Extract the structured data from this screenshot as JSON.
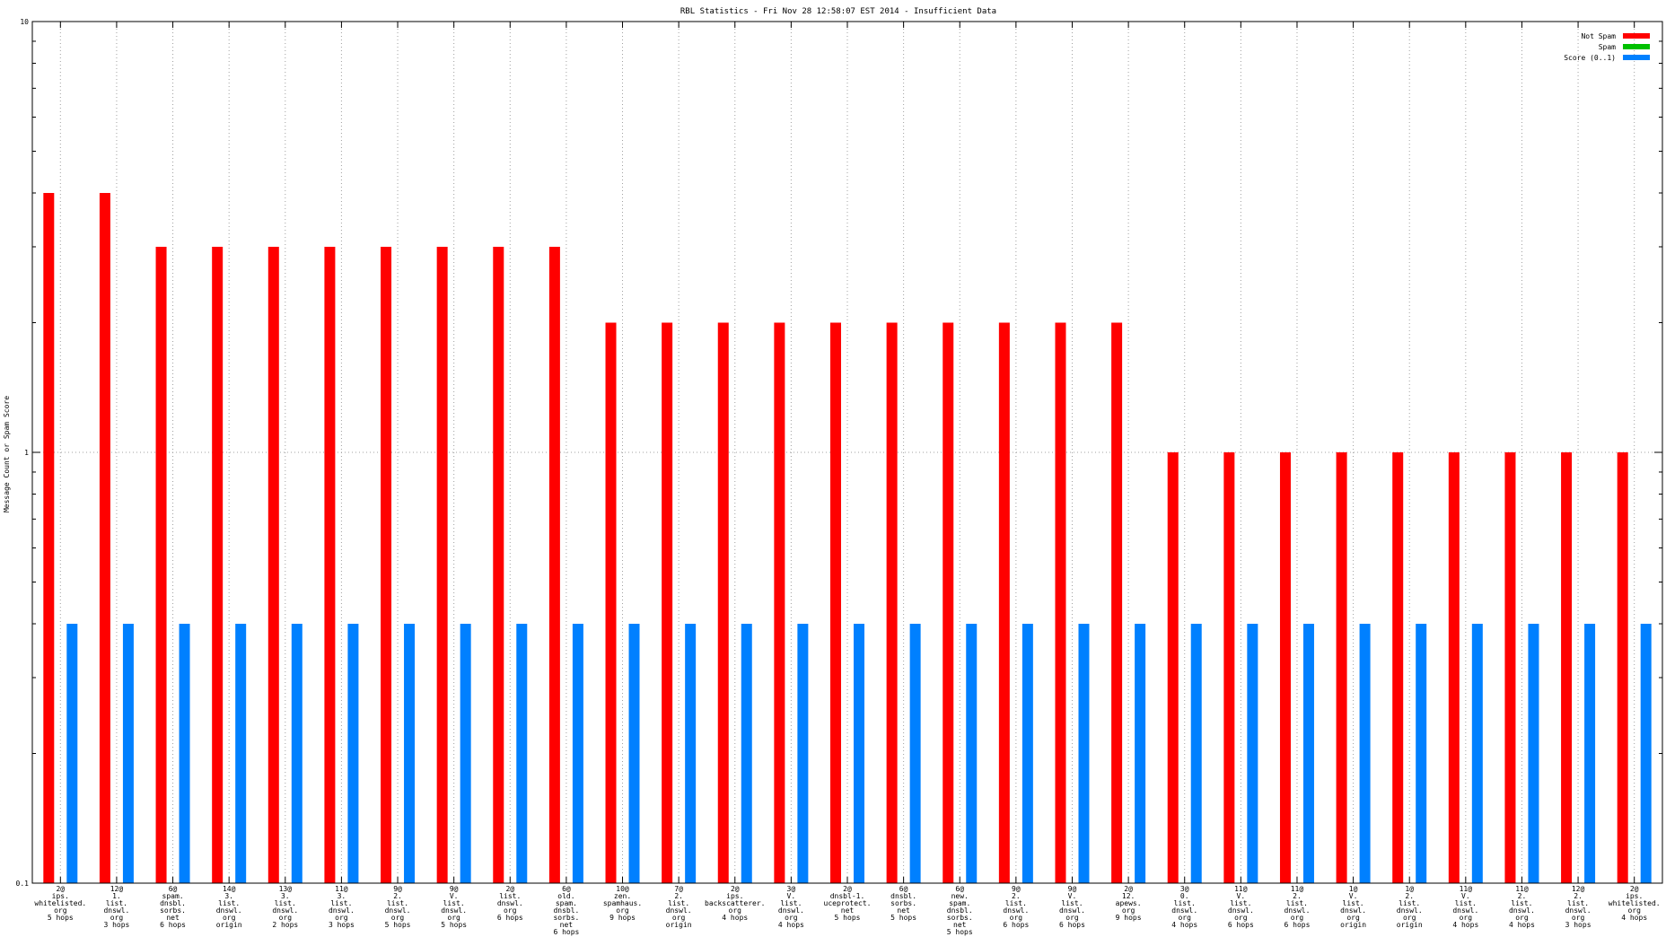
{
  "chart_data": {
    "type": "bar",
    "title": "RBL Statistics - Fri Nov 28 12:58:07 EST 2014 - Insufficient Data",
    "ylabel": "Message Count or Spam Score",
    "xlabel": "",
    "yscale": "log",
    "ylim": [
      0.1,
      10
    ],
    "y_ticks": [
      "0.1",
      "1",
      "10"
    ],
    "grid": true,
    "legend_position": "top-right",
    "categories": [
      [
        "2@",
        "ips.",
        "whitelisted.",
        "org",
        "5 hops"
      ],
      [
        "12@",
        "1.",
        "list.",
        "dnswl.",
        "org",
        "3 hops"
      ],
      [
        "6@",
        "spam.",
        "dnsbl.",
        "sorbs.",
        "net",
        "6 hops"
      ],
      [
        "14@",
        "3.",
        "list.",
        "dnswl.",
        "org",
        "origin"
      ],
      [
        "13@",
        "3.",
        "list.",
        "dnswl.",
        "org",
        "2 hops"
      ],
      [
        "11@",
        "3.",
        "list.",
        "dnswl.",
        "org",
        "3 hops"
      ],
      [
        "9@",
        "2.",
        "list.",
        "dnswl.",
        "org",
        "5 hops"
      ],
      [
        "9@",
        "V.",
        "list.",
        "dnswl.",
        "org",
        "5 hops"
      ],
      [
        "2@",
        "list.",
        "dnswl.",
        "org",
        "6 hops"
      ],
      [
        "6@",
        "old.",
        "spam.",
        "dnsbl.",
        "sorbs.",
        "net",
        "6 hops"
      ],
      [
        "10@",
        "zen.",
        "spamhaus.",
        "org",
        "9 hops"
      ],
      [
        "7@",
        "2.",
        "list.",
        "dnswl.",
        "org",
        "origin"
      ],
      [
        "2@",
        "ips.",
        "backscatterer.",
        "org",
        "4 hops"
      ],
      [
        "3@",
        "V.",
        "list.",
        "dnswl.",
        "org",
        "4 hops"
      ],
      [
        "2@",
        "dnsbl-1.",
        "uceprotect.",
        "net",
        "5 hops"
      ],
      [
        "6@",
        "dnsbl.",
        "sorbs.",
        "net",
        "5 hops"
      ],
      [
        "6@",
        "new.",
        "spam.",
        "dnsbl.",
        "sorbs.",
        "net",
        "5 hops"
      ],
      [
        "9@",
        "2.",
        "list.",
        "dnswl.",
        "org",
        "6 hops"
      ],
      [
        "9@",
        "V.",
        "list.",
        "dnswl.",
        "org",
        "6 hops"
      ],
      [
        "2@",
        "12.",
        "apews.",
        "org",
        "9 hops"
      ],
      [
        "3@",
        "0.",
        "list.",
        "dnswl.",
        "org",
        "4 hops"
      ],
      [
        "11@",
        "V.",
        "list.",
        "dnswl.",
        "org",
        "6 hops"
      ],
      [
        "11@",
        "2.",
        "list.",
        "dnswl.",
        "org",
        "6 hops"
      ],
      [
        "1@",
        "V.",
        "list.",
        "dnswl.",
        "org",
        "origin"
      ],
      [
        "1@",
        "2.",
        "list.",
        "dnswl.",
        "org",
        "origin"
      ],
      [
        "11@",
        "V.",
        "list.",
        "dnswl.",
        "org",
        "4 hops"
      ],
      [
        "11@",
        "2.",
        "list.",
        "dnswl.",
        "org",
        "4 hops"
      ],
      [
        "12@",
        "2.",
        "list.",
        "dnswl.",
        "org",
        "3 hops"
      ],
      [
        "2@",
        "ips.",
        "whitelisted.",
        "org",
        "4 hops"
      ]
    ],
    "series": [
      {
        "name": "Not Spam",
        "color": "#ff0000",
        "values": [
          4,
          4,
          3,
          3,
          3,
          3,
          3,
          3,
          3,
          3,
          2,
          2,
          2,
          2,
          2,
          2,
          2,
          2,
          2,
          2,
          1,
          1,
          1,
          1,
          1,
          1,
          1,
          1,
          1
        ]
      },
      {
        "name": "Spam",
        "color": "#00c000",
        "values": [
          0,
          0,
          0,
          0,
          0,
          0,
          0,
          0,
          0,
          0,
          0,
          0,
          0,
          0,
          0,
          0,
          0,
          0,
          0,
          0,
          0,
          0,
          0,
          0,
          0,
          0,
          0,
          0,
          0
        ]
      },
      {
        "name": "Score (0..1)",
        "color": "#0080ff",
        "values": [
          0.4,
          0.4,
          0.4,
          0.4,
          0.4,
          0.4,
          0.4,
          0.4,
          0.4,
          0.4,
          0.4,
          0.4,
          0.4,
          0.4,
          0.4,
          0.4,
          0.4,
          0.4,
          0.4,
          0.4,
          0.4,
          0.4,
          0.4,
          0.4,
          0.4,
          0.4,
          0.4,
          0.4,
          0.4
        ]
      }
    ]
  }
}
